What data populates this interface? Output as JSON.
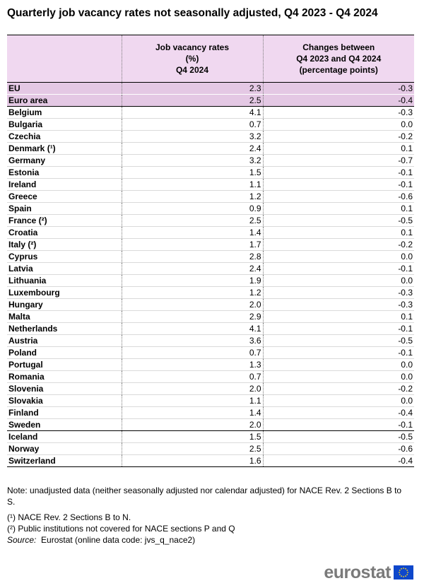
{
  "chart_data": {
    "type": "table",
    "title": "Quarterly job vacancy rates not seasonally adjusted, Q4 2023 - Q4 2024",
    "columns": [
      {
        "lines": [
          "Job vacancy rates",
          "(%)",
          "Q4 2024"
        ]
      },
      {
        "lines": [
          "Changes between",
          "Q4 2023 and Q4 2024",
          "(percentage points)"
        ]
      }
    ],
    "rows": [
      {
        "name": "EU",
        "rate": "2.3",
        "change": "-0.3"
      },
      {
        "name": "Euro area",
        "rate": "2.5",
        "change": "-0.4"
      },
      {
        "name": "Belgium",
        "rate": "4.1",
        "change": "-0.3"
      },
      {
        "name": "Bulgaria",
        "rate": "0.7",
        "change": "0.0"
      },
      {
        "name": "Czechia",
        "rate": "3.2",
        "change": "-0.2"
      },
      {
        "name": "Denmark (¹)",
        "rate": "2.4",
        "change": "0.1"
      },
      {
        "name": "Germany",
        "rate": "3.2",
        "change": "-0.7"
      },
      {
        "name": "Estonia",
        "rate": "1.5",
        "change": "-0.1"
      },
      {
        "name": "Ireland",
        "rate": "1.1",
        "change": "-0.1"
      },
      {
        "name": "Greece",
        "rate": "1.2",
        "change": "-0.6"
      },
      {
        "name": "Spain",
        "rate": "0.9",
        "change": "0.1"
      },
      {
        "name": "France (²)",
        "rate": "2.5",
        "change": "-0.5"
      },
      {
        "name": "Croatia",
        "rate": "1.4",
        "change": "0.1"
      },
      {
        "name": "Italy (²)",
        "rate": "1.7",
        "change": "-0.2"
      },
      {
        "name": "Cyprus",
        "rate": "2.8",
        "change": "0.0"
      },
      {
        "name": "Latvia",
        "rate": "2.4",
        "change": "-0.1"
      },
      {
        "name": "Lithuania",
        "rate": "1.9",
        "change": "0.0"
      },
      {
        "name": "Luxembourg",
        "rate": "1.2",
        "change": "-0.3"
      },
      {
        "name": "Hungary",
        "rate": "2.0",
        "change": "-0.3"
      },
      {
        "name": "Malta",
        "rate": "2.9",
        "change": "0.1"
      },
      {
        "name": "Netherlands",
        "rate": "4.1",
        "change": "-0.1"
      },
      {
        "name": "Austria",
        "rate": "3.6",
        "change": "-0.5"
      },
      {
        "name": "Poland",
        "rate": "0.7",
        "change": "-0.1"
      },
      {
        "name": "Portugal",
        "rate": "1.3",
        "change": "0.0"
      },
      {
        "name": "Romania",
        "rate": "0.7",
        "change": "0.0"
      },
      {
        "name": "Slovenia",
        "rate": "2.0",
        "change": "-0.2"
      },
      {
        "name": "Slovakia",
        "rate": "1.1",
        "change": "0.0"
      },
      {
        "name": "Finland",
        "rate": "1.4",
        "change": "-0.4"
      },
      {
        "name": "Sweden",
        "rate": "2.0",
        "change": "-0.1"
      },
      {
        "name": "Iceland",
        "rate": "1.5",
        "change": "-0.5"
      },
      {
        "name": "Norway",
        "rate": "2.5",
        "change": "-0.6"
      },
      {
        "name": "Switzerland",
        "rate": "1.6",
        "change": "-0.4"
      }
    ],
    "aggregate_rows": 2,
    "group_end_row": "Sweden"
  },
  "notes": {
    "note": "Note: unadjusted data (neither seasonally adjusted nor calendar adjusted) for NACE Rev. 2 Sections B to S.",
    "footnote1": "(¹) NACE Rev. 2 Sections B to N.",
    "footnote2": "(²) Public institutions not covered for NACE sections P and Q",
    "source_label": "Source:",
    "source_text": "Eurostat (online data code: jvs_q_nace2)"
  },
  "logo": {
    "text": "eurostat",
    "flag_color": "#0e47cb",
    "star_color": "#ffd617"
  },
  "colors": {
    "header_bg": "#f0d8f0",
    "aggregate_bg": "#e4c8e4"
  }
}
